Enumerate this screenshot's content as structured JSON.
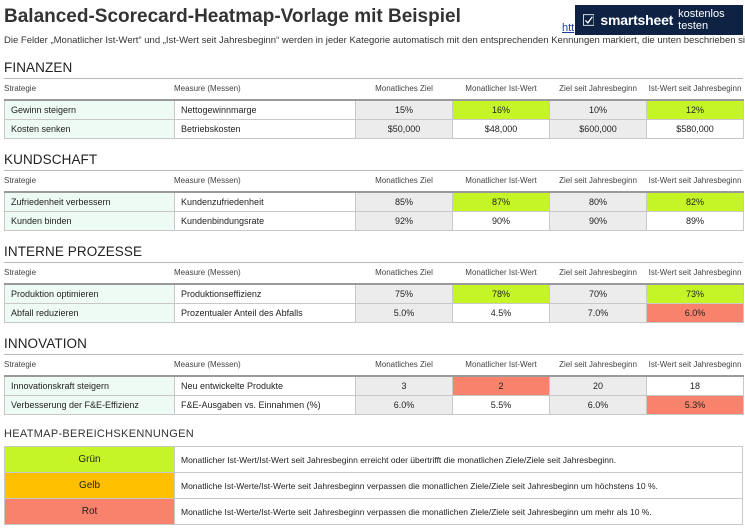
{
  "title": "Balanced-Scorecard-Heatmap-Vorlage mit Beispiel",
  "link_fragment": "htt",
  "banner": {
    "brand": "smartsheet",
    "cta": "kostenlos testen",
    "logo_icon": "smartsheet-check-icon"
  },
  "description": "Die Felder „Monatlicher Ist-Wert“ und „Ist-Wert seit Jahresbeginn“ werden in jeder Kategorie automatisch mit den entsprechenden Kennungen markiert, die unten beschrieben sind.",
  "columns": {
    "strategy": "Strategie",
    "measure": "Measure (Messen)",
    "monthly_goal": "Monatliches Ziel",
    "monthly_actual": "Monatlicher Ist-Wert",
    "ytd_goal": "Ziel seit Jahresbeginn",
    "ytd_actual": "Ist-Wert seit Jahresbeginn"
  },
  "colors": {
    "green": "#c5f527",
    "yellow": "#ffc000",
    "red": "#f8826b",
    "grey": "#ececec",
    "strategy_bg": "#eefaf4",
    "banner_bg": "#0e2344"
  },
  "sections": [
    {
      "title": "FINANZEN",
      "rows": [
        {
          "strategy": "Gewinn steigern",
          "measure": "Nettogewinnmarge",
          "monthly_goal": "15%",
          "monthly_actual": "16%",
          "ytd_goal": "10%",
          "ytd_actual": "12%",
          "monthly_actual_status": "green",
          "ytd_actual_status": "green"
        },
        {
          "strategy": "Kosten senken",
          "measure": "Betriebskosten",
          "monthly_goal": "$50,000",
          "monthly_actual": "$48,000",
          "ytd_goal": "$600,000",
          "ytd_actual": "$580,000",
          "monthly_actual_status": "white",
          "ytd_actual_status": "white"
        }
      ]
    },
    {
      "title": "KUNDSCHAFT",
      "rows": [
        {
          "strategy": "Zufriedenheit verbessern",
          "measure": "Kundenzufriedenheit",
          "monthly_goal": "85%",
          "monthly_actual": "87%",
          "ytd_goal": "80%",
          "ytd_actual": "82%",
          "monthly_actual_status": "green",
          "ytd_actual_status": "green"
        },
        {
          "strategy": "Kunden binden",
          "measure": "Kundenbindungsrate",
          "monthly_goal": "92%",
          "monthly_actual": "90%",
          "ytd_goal": "90%",
          "ytd_actual": "89%",
          "monthly_actual_status": "white",
          "ytd_actual_status": "white"
        }
      ]
    },
    {
      "title": "INTERNE PROZESSE",
      "rows": [
        {
          "strategy": "Produktion optimieren",
          "measure": "Produktionseffizienz",
          "monthly_goal": "75%",
          "monthly_actual": "78%",
          "ytd_goal": "70%",
          "ytd_actual": "73%",
          "monthly_actual_status": "green",
          "ytd_actual_status": "green"
        },
        {
          "strategy": "Abfall reduzieren",
          "measure": "Prozentualer Anteil des Abfalls",
          "monthly_goal": "5.0%",
          "monthly_actual": "4.5%",
          "ytd_goal": "7.0%",
          "ytd_actual": "6.0%",
          "monthly_actual_status": "white",
          "ytd_actual_status": "red"
        }
      ]
    },
    {
      "title": "INNOVATION",
      "rows": [
        {
          "strategy": "Innovationskraft steigern",
          "measure": "Neu entwickelte Produkte",
          "monthly_goal": "3",
          "monthly_actual": "2",
          "ytd_goal": "20",
          "ytd_actual": "18",
          "monthly_actual_status": "red",
          "ytd_actual_status": "white"
        },
        {
          "strategy": "Verbesserung der F&E-Effizienz",
          "measure": "F&E-Ausgaben vs. Einnahmen (%)",
          "monthly_goal": "6.0%",
          "monthly_actual": "5.5%",
          "ytd_goal": "6.0%",
          "ytd_actual": "5.3%",
          "monthly_actual_status": "white",
          "ytd_actual_status": "red"
        }
      ]
    }
  ],
  "legend": {
    "title": "HEATMAP-BEREICHSKENNUNGEN",
    "items": [
      {
        "label": "Grün",
        "color": "#c5f527",
        "text": "Monatlicher Ist-Wert/Ist-Wert seit Jahresbeginn erreicht oder übertrifft die monatlichen Ziele/Ziele seit Jahresbeginn."
      },
      {
        "label": "Gelb",
        "color": "#ffc000",
        "text": "Monatliche Ist-Werte/Ist-Werte seit Jahresbeginn verpassen die monatlichen Ziele/Ziele seit Jahresbeginn um höchstens 10 %."
      },
      {
        "label": "Rot",
        "color": "#f8826b",
        "text": "Monatliche Ist-Werte/Ist-Werte seit Jahresbeginn verpassen die monatlichen Ziele/Ziele seit Jahresbeginn um mehr als 10 %."
      }
    ]
  }
}
